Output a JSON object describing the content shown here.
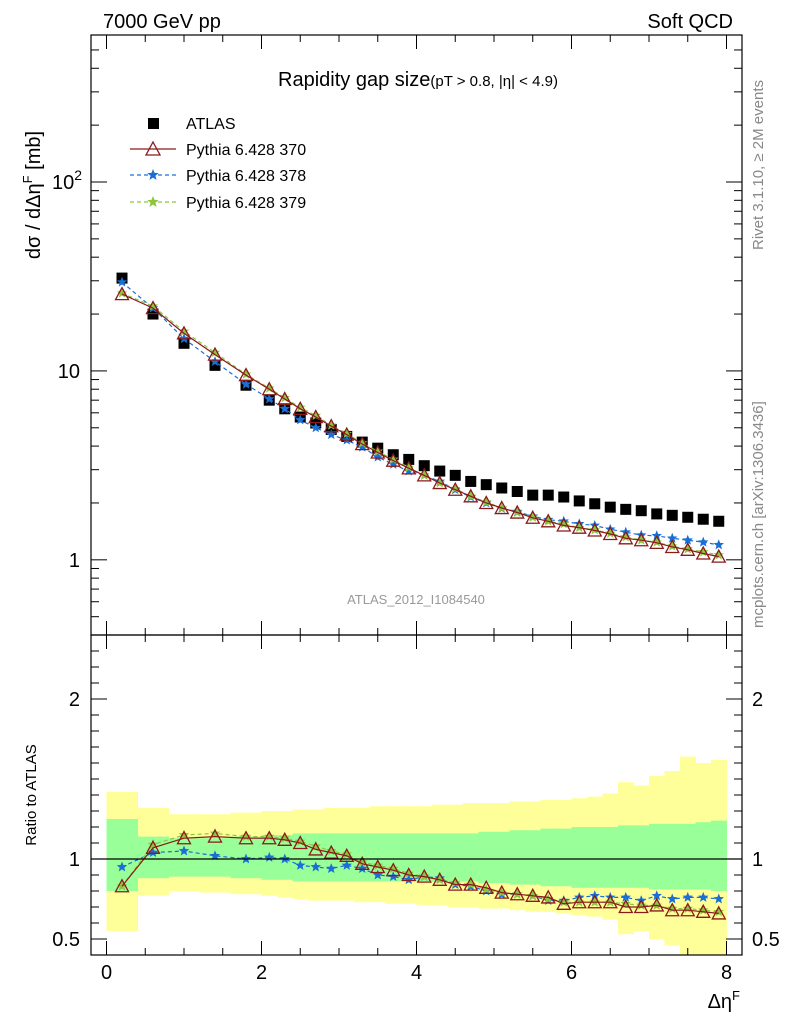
{
  "header": {
    "left": "7000 GeV pp",
    "right": "Soft QCD"
  },
  "side": {
    "rivet": "Rivet 3.1.10, ≥ 2M events",
    "mcplots": "mcplots.cern.ch [arXiv:1306.3436]"
  },
  "plot": {
    "title_main": "Rapidity gap size",
    "title_cuts": "(pT > 0.8, |η| < 4.9)",
    "ylabel": "dσ / dΔη",
    "ylabel_sup": "F",
    "ylabel_unit": " [mb]",
    "analysis_tag": "ATLAS_2012_I1084540",
    "xlabel": "Δη",
    "xlabel_sup": "F",
    "ratio_ylabel": "Ratio to ATLAS"
  },
  "legend": [
    {
      "label": "ATLAS",
      "color": "#000000",
      "marker": "square"
    },
    {
      "label": "Pythia 6.428 370",
      "color": "#8b1a1a",
      "marker": "triangle-open"
    },
    {
      "label": "Pythia 6.428 378",
      "color": "#1a6fd6",
      "marker": "star"
    },
    {
      "label": "Pythia 6.428 379",
      "color": "#8cc63f",
      "marker": "star"
    }
  ],
  "chart_data": [
    {
      "type": "scatter",
      "panel": "main",
      "ylog": true,
      "xlim": [
        -0.2,
        8.2
      ],
      "ylim": [
        0.4,
        600
      ],
      "xticks": [
        0,
        2,
        4,
        6,
        8
      ],
      "yticks_labeled": [
        1,
        10,
        100
      ],
      "ytick_labels": [
        "1",
        "10",
        "10^2"
      ],
      "x": [
        0.2,
        0.6,
        1.0,
        1.4,
        1.8,
        2.1,
        2.3,
        2.5,
        2.7,
        2.9,
        3.1,
        3.3,
        3.5,
        3.7,
        3.9,
        4.1,
        4.3,
        4.5,
        4.7,
        4.9,
        5.1,
        5.3,
        5.5,
        5.7,
        5.9,
        6.1,
        6.3,
        6.5,
        6.7,
        6.9,
        7.1,
        7.3,
        7.5,
        7.7,
        7.9
      ],
      "series": [
        {
          "name": "ATLAS",
          "values": [
            31,
            20,
            14,
            10.7,
            8.4,
            7.0,
            6.3,
            5.7,
            5.3,
            4.9,
            4.5,
            4.2,
            3.9,
            3.6,
            3.4,
            3.15,
            2.95,
            2.8,
            2.6,
            2.5,
            2.4,
            2.3,
            2.2,
            2.2,
            2.15,
            2.05,
            1.98,
            1.9,
            1.85,
            1.82,
            1.75,
            1.72,
            1.68,
            1.64,
            1.6
          ]
        },
        {
          "name": "Pythia 6.428 370",
          "values": [
            25.5,
            21.5,
            15.8,
            12.2,
            9.5,
            8.0,
            7.1,
            6.3,
            5.7,
            5.1,
            4.6,
            4.1,
            3.7,
            3.35,
            3.05,
            2.8,
            2.55,
            2.35,
            2.17,
            2.0,
            1.88,
            1.78,
            1.67,
            1.6,
            1.52,
            1.48,
            1.43,
            1.37,
            1.3,
            1.27,
            1.23,
            1.17,
            1.13,
            1.08,
            1.04
          ]
        },
        {
          "name": "Pythia 6.428 378",
          "values": [
            29.5,
            21.5,
            14.8,
            11.2,
            8.5,
            7.1,
            6.3,
            5.5,
            5.0,
            4.6,
            4.3,
            3.95,
            3.5,
            3.2,
            2.95,
            2.8,
            2.6,
            2.35,
            2.15,
            2.0,
            1.87,
            1.8,
            1.7,
            1.63,
            1.6,
            1.55,
            1.52,
            1.45,
            1.4,
            1.35,
            1.34,
            1.3,
            1.27,
            1.24,
            1.2
          ]
        },
        {
          "name": "Pythia 6.428 379",
          "values": [
            25.8,
            22.0,
            16.2,
            12.5,
            9.6,
            8.1,
            7.2,
            6.4,
            5.8,
            5.15,
            4.65,
            4.15,
            3.75,
            3.4,
            3.08,
            2.8,
            2.55,
            2.38,
            2.17,
            2.02,
            1.88,
            1.78,
            1.68,
            1.6,
            1.55,
            1.48,
            1.44,
            1.38,
            1.32,
            1.27,
            1.24,
            1.18,
            1.14,
            1.1,
            1.06
          ]
        }
      ]
    },
    {
      "type": "line",
      "panel": "ratio",
      "xlim": [
        -0.2,
        8.2
      ],
      "ylim": [
        0.4,
        2.4
      ],
      "xticks": [
        0,
        2,
        4,
        6,
        8
      ],
      "yticks_labeled": [
        0.5,
        1,
        2
      ],
      "x": [
        0.2,
        0.6,
        1.0,
        1.4,
        1.8,
        2.1,
        2.3,
        2.5,
        2.7,
        2.9,
        3.1,
        3.3,
        3.5,
        3.7,
        3.9,
        4.1,
        4.3,
        4.5,
        4.7,
        4.9,
        5.1,
        5.3,
        5.5,
        5.7,
        5.9,
        6.1,
        6.3,
        6.5,
        6.7,
        6.9,
        7.1,
        7.3,
        7.5,
        7.7,
        7.9
      ],
      "bin_edges": [
        0.0,
        0.4,
        0.8,
        1.2,
        1.6,
        2.0,
        2.2,
        2.4,
        2.6,
        2.8,
        3.0,
        3.2,
        3.4,
        3.6,
        3.8,
        4.0,
        4.2,
        4.4,
        4.6,
        4.8,
        5.0,
        5.2,
        5.4,
        5.6,
        5.8,
        6.0,
        6.2,
        6.4,
        6.6,
        6.8,
        7.0,
        7.2,
        7.4,
        7.6,
        7.8,
        8.0
      ],
      "band_inner": {
        "color": "#99ff99",
        "lo": [
          0.8,
          0.88,
          0.89,
          0.89,
          0.88,
          0.87,
          0.87,
          0.86,
          0.86,
          0.86,
          0.86,
          0.86,
          0.86,
          0.86,
          0.86,
          0.86,
          0.86,
          0.86,
          0.86,
          0.85,
          0.85,
          0.84,
          0.84,
          0.83,
          0.83,
          0.82,
          0.82,
          0.82,
          0.82,
          0.82,
          0.81,
          0.81,
          0.81,
          0.81,
          0.8
        ],
        "hi": [
          1.25,
          1.14,
          1.13,
          1.13,
          1.14,
          1.15,
          1.15,
          1.16,
          1.16,
          1.16,
          1.16,
          1.16,
          1.16,
          1.16,
          1.16,
          1.16,
          1.16,
          1.16,
          1.16,
          1.17,
          1.17,
          1.18,
          1.18,
          1.19,
          1.19,
          1.2,
          1.2,
          1.2,
          1.21,
          1.21,
          1.22,
          1.22,
          1.22,
          1.23,
          1.24
        ]
      },
      "band_outer": {
        "color": "#ffff99",
        "lo": [
          0.55,
          0.77,
          0.8,
          0.79,
          0.78,
          0.77,
          0.76,
          0.75,
          0.74,
          0.74,
          0.74,
          0.73,
          0.73,
          0.72,
          0.72,
          0.71,
          0.71,
          0.7,
          0.7,
          0.69,
          0.69,
          0.68,
          0.67,
          0.67,
          0.66,
          0.65,
          0.64,
          0.62,
          0.53,
          0.55,
          0.5,
          0.46,
          0.38,
          0.38,
          0.36
        ],
        "hi": [
          1.42,
          1.32,
          1.28,
          1.28,
          1.29,
          1.3,
          1.3,
          1.31,
          1.31,
          1.32,
          1.32,
          1.32,
          1.33,
          1.33,
          1.33,
          1.33,
          1.34,
          1.34,
          1.35,
          1.35,
          1.35,
          1.36,
          1.36,
          1.37,
          1.37,
          1.38,
          1.39,
          1.41,
          1.48,
          1.46,
          1.52,
          1.55,
          1.64,
          1.6,
          1.62
        ]
      },
      "series": [
        {
          "name": "Pythia 6.428 370",
          "values": [
            0.83,
            1.07,
            1.13,
            1.14,
            1.13,
            1.13,
            1.12,
            1.1,
            1.06,
            1.04,
            1.02,
            0.97,
            0.95,
            0.93,
            0.9,
            0.89,
            0.87,
            0.84,
            0.84,
            0.82,
            0.79,
            0.78,
            0.77,
            0.76,
            0.72,
            0.73,
            0.73,
            0.73,
            0.7,
            0.7,
            0.71,
            0.68,
            0.68,
            0.67,
            0.66
          ]
        },
        {
          "name": "Pythia 6.428 378",
          "values": [
            0.95,
            1.04,
            1.05,
            1.02,
            1.0,
            1.01,
            1.0,
            0.96,
            0.95,
            0.94,
            0.96,
            0.94,
            0.9,
            0.89,
            0.87,
            0.89,
            0.88,
            0.84,
            0.83,
            0.8,
            0.78,
            0.78,
            0.77,
            0.74,
            0.74,
            0.76,
            0.77,
            0.76,
            0.76,
            0.74,
            0.77,
            0.75,
            0.76,
            0.76,
            0.75
          ]
        },
        {
          "name": "Pythia 6.428 379",
          "values": [
            0.83,
            1.09,
            1.15,
            1.16,
            1.14,
            1.14,
            1.13,
            1.11,
            1.08,
            1.05,
            1.03,
            0.98,
            0.96,
            0.94,
            0.91,
            0.89,
            0.87,
            0.85,
            0.84,
            0.81,
            0.79,
            0.78,
            0.77,
            0.75,
            0.73,
            0.73,
            0.73,
            0.73,
            0.72,
            0.71,
            0.71,
            0.69,
            0.69,
            0.68,
            0.67
          ]
        }
      ]
    }
  ]
}
